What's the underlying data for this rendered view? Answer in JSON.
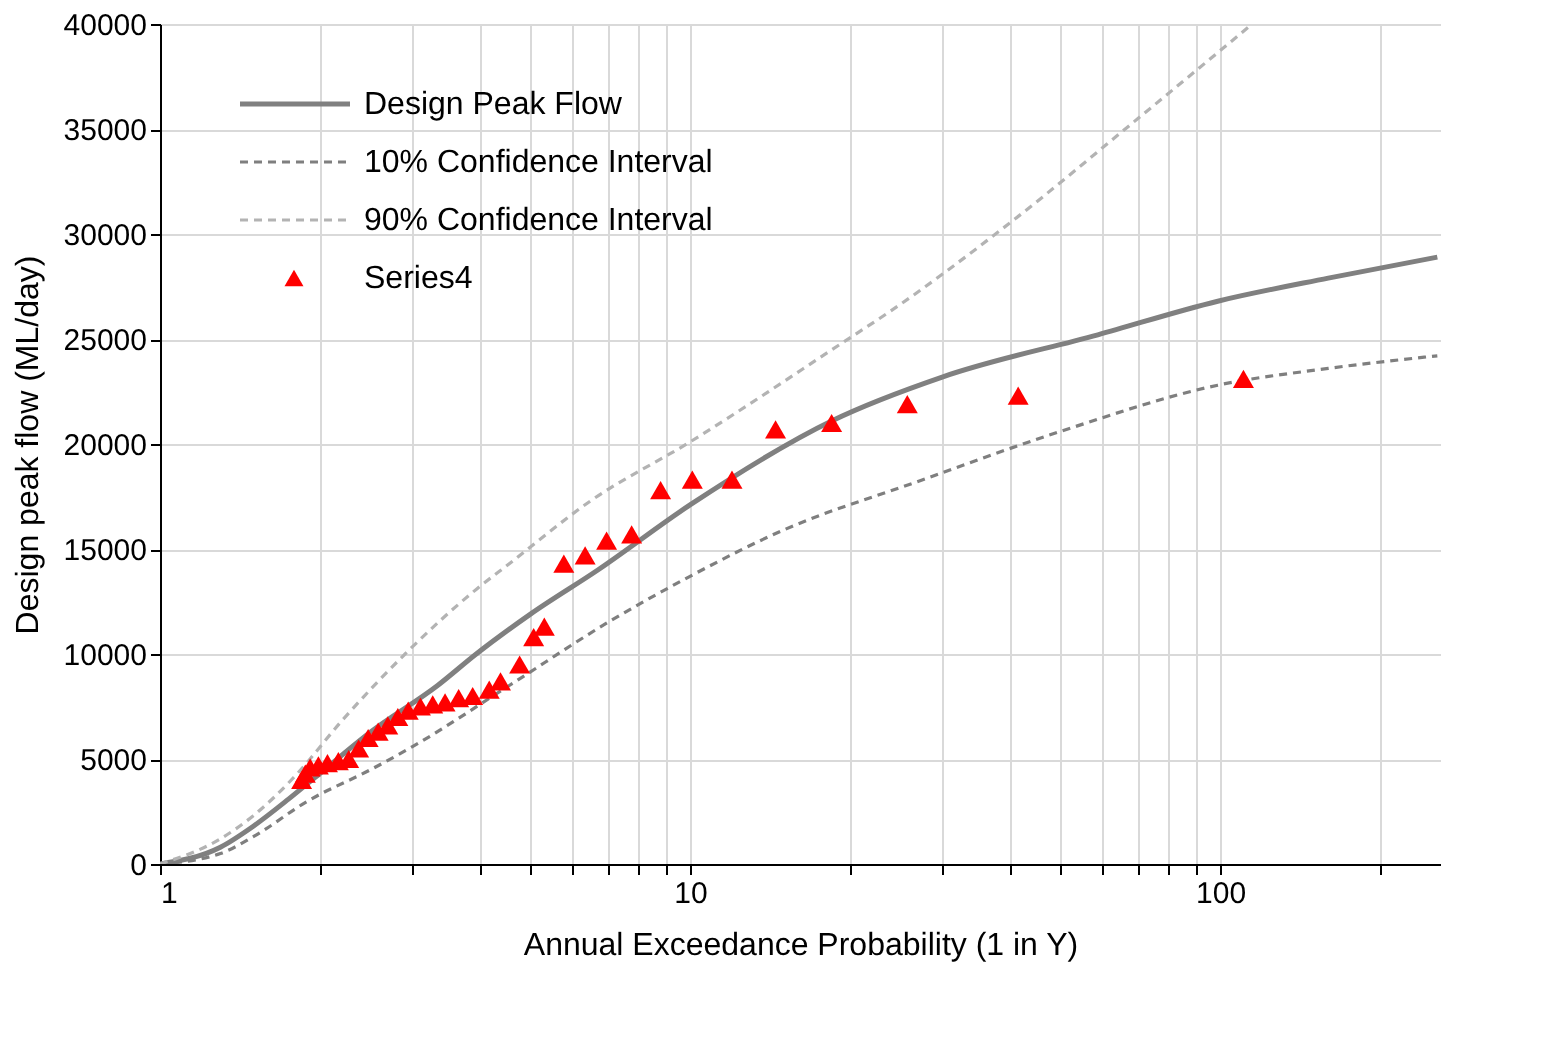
{
  "chart_data": {
    "type": "line",
    "xlabel": "Annual  Exceedance Probability (1 in Y)",
    "ylabel": "Design peak flow (ML/day)",
    "log": "x",
    "xlim": [
      1,
      260
    ],
    "xticks": [
      1,
      {
        "value": 2,
        "label": null
      },
      {
        "value": 3,
        "label": null
      },
      {
        "value": 4,
        "label": null
      },
      {
        "value": 5,
        "label": null
      },
      {
        "value": 6,
        "label": null
      },
      {
        "value": 7,
        "label": null
      },
      {
        "value": 8,
        "label": null
      },
      {
        "value": 9,
        "label": null
      },
      10,
      {
        "value": 20,
        "label": null
      },
      {
        "value": 30,
        "label": null
      },
      {
        "value": 40,
        "label": null
      },
      {
        "value": 50,
        "label": null
      },
      {
        "value": 60,
        "label": null
      },
      {
        "value": 70,
        "label": null
      },
      {
        "value": 80,
        "label": null
      },
      {
        "value": 90,
        "label": null
      },
      100,
      {
        "value": 200,
        "label": null
      }
    ],
    "ylim": [
      0,
      40000
    ],
    "yticks": [
      0,
      5000,
      10000,
      15000,
      20000,
      25000,
      30000,
      35000,
      40000
    ],
    "grid": true,
    "legend": "top left",
    "series": [
      {
        "name": "Design Peak Flow",
        "line_style": "solid",
        "color": "#808080",
        "x": [
          1,
          1.3,
          1.5,
          1.75,
          2,
          2.5,
          3.34,
          3.95,
          5,
          6.7,
          10,
          18.5,
          30,
          58.8,
          99,
          160,
          257
        ],
        "values": [
          0,
          800,
          1800,
          3100,
          4300,
          6300,
          8500,
          10000,
          11900,
          14000,
          17100,
          21100,
          23200,
          25200,
          26800,
          27900,
          28900
        ]
      },
      {
        "name": "10% Confidence Interval",
        "line_style": "dashed",
        "color": "#7f7f7f",
        "x": [
          1,
          1.3,
          1.5,
          1.9,
          2.5,
          3,
          4.56,
          7.1,
          10,
          15,
          26.8,
          50,
          99,
          160,
          257
        ],
        "values": [
          0,
          500,
          1300,
          3000,
          4500,
          5600,
          8500,
          11600,
          13700,
          15900,
          18200,
          20600,
          22800,
          23600,
          24200
        ]
      },
      {
        "name": "90% Confidence Interval",
        "line_style": "dashed",
        "color": "#b3b3b3",
        "x": [
          1,
          1.3,
          1.5,
          1.8,
          2.2,
          2.9,
          3.96,
          4.56,
          6.5,
          10,
          19.6,
          23.8,
          40,
          70,
          115
        ],
        "values": [
          0,
          1200,
          2300,
          4200,
          6800,
          10000,
          13100,
          14300,
          17300,
          20100,
          24900,
          26300,
          30500,
          35500,
          40000
        ]
      },
      {
        "name": "Series4",
        "type": "scatter",
        "marker": "triangle",
        "color": "#ff0000",
        "x": [
          1.85,
          1.88,
          1.92,
          1.99,
          2.07,
          2.17,
          2.27,
          2.37,
          2.47,
          2.58,
          2.69,
          2.81,
          2.94,
          3.1,
          3.27,
          3.45,
          3.66,
          3.89,
          4.18,
          4.39,
          4.77,
          5.07,
          5.31,
          5.78,
          6.34,
          6.96,
          7.76,
          8.8,
          10.1,
          12.0,
          14.5,
          18.5,
          25.7,
          41.6,
          110.7
        ],
        "values": [
          4000,
          4300,
          4600,
          4700,
          4800,
          4900,
          5000,
          5500,
          6000,
          6300,
          6600,
          7000,
          7300,
          7500,
          7600,
          7700,
          7900,
          8000,
          8300,
          8700,
          9500,
          10800,
          11300,
          14300,
          14700,
          15400,
          15700,
          17800,
          18300,
          18300,
          20700,
          21000,
          21900,
          22300,
          23100
        ]
      }
    ]
  }
}
